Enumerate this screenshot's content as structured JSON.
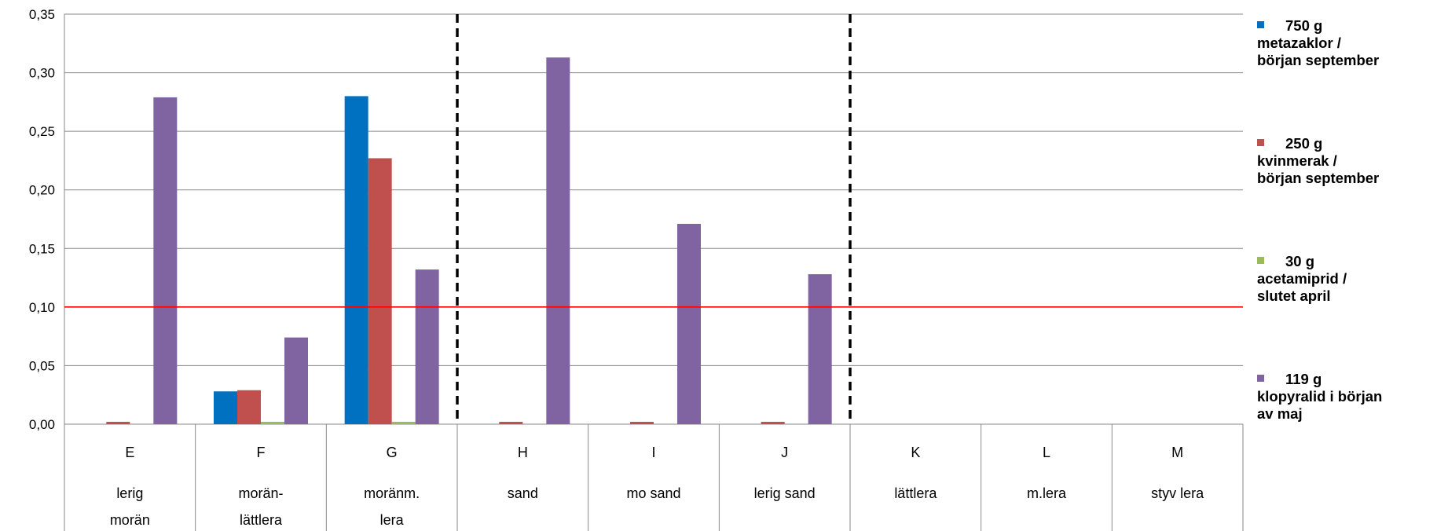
{
  "chart_data": {
    "type": "bar",
    "categories": [
      {
        "code": "E",
        "soil": [
          "lerig",
          "morän"
        ]
      },
      {
        "code": "F",
        "soil": [
          "morän-",
          "lättlera"
        ]
      },
      {
        "code": "G",
        "soil": [
          "moränm.",
          "lera"
        ]
      },
      {
        "code": "H",
        "soil": [
          "sand"
        ]
      },
      {
        "code": "I",
        "soil": [
          "mo sand"
        ]
      },
      {
        "code": "J",
        "soil": [
          "lerig sand"
        ]
      },
      {
        "code": "K",
        "soil": [
          "lättlera"
        ]
      },
      {
        "code": "L",
        "soil": [
          "m.lera"
        ]
      },
      {
        "code": "M",
        "soil": [
          "styv lera"
        ]
      }
    ],
    "series": [
      {
        "name": "750 g metazaklor / början september",
        "legend_lines": [
          "750 g",
          "metazaklor /",
          "början september"
        ],
        "color": "#0070C0",
        "values": [
          null,
          0.028,
          0.28,
          null,
          null,
          null,
          null,
          null,
          null
        ]
      },
      {
        "name": "250 g kvinmerak / början september",
        "legend_lines": [
          "250 g",
          "kvinmerak /",
          "början september"
        ],
        "color": "#C0504D",
        "values": [
          0.002,
          0.029,
          0.227,
          0.002,
          0.002,
          0.002,
          null,
          null,
          null
        ]
      },
      {
        "name": "30 g acetamiprid / slutet april",
        "legend_lines": [
          "30 g",
          "acetamiprid /",
          "slutet april"
        ],
        "color": "#9BBB59",
        "values": [
          null,
          0.002,
          0.002,
          null,
          null,
          null,
          null,
          null,
          null
        ]
      },
      {
        "name": "119 g klopyralid i början av maj",
        "legend_lines": [
          "119 g",
          "klopyralid i början",
          "av maj"
        ],
        "color": "#8064A2",
        "values": [
          0.279,
          0.074,
          0.132,
          0.313,
          0.171,
          0.128,
          null,
          null,
          null
        ]
      }
    ],
    "ylim": [
      0,
      0.35
    ],
    "yticks": [
      "0,00",
      "0,05",
      "0,10",
      "0,15",
      "0,20",
      "0,25",
      "0,30",
      "0,35"
    ],
    "reference_line": {
      "value": 0.1,
      "color": "#FF0000"
    },
    "group_separators_after": [
      "G",
      "J"
    ],
    "grid": true,
    "legend_position": "right"
  }
}
